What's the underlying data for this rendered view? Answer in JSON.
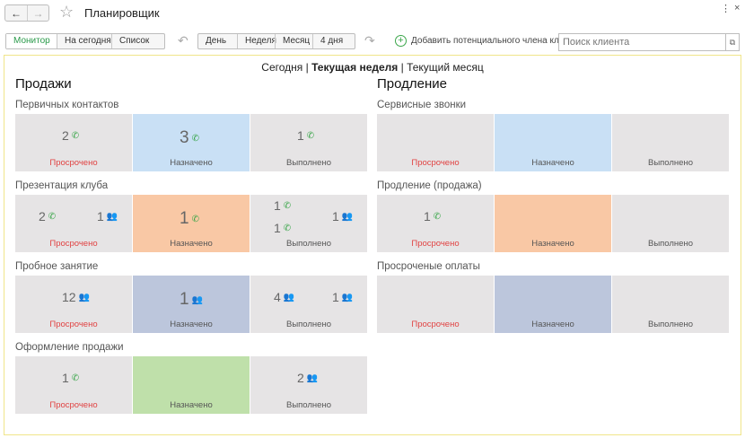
{
  "window": {
    "title": "Планировщик",
    "back": "←",
    "forward": "→",
    "star": "☆",
    "menu": "⋮",
    "close": "×"
  },
  "toolbar": {
    "views": [
      "Монитор",
      "На сегодня",
      "Список"
    ],
    "active_view": "Монитор",
    "undo": "↶",
    "redo": "↷",
    "ranges": [
      "День",
      "Неделя",
      "Месяц",
      "4 дня"
    ],
    "add_label": "Добавить потенциального члена клуба",
    "search_placeholder": "Поиск клиента",
    "search_button": "⧉"
  },
  "periods": {
    "today": "Сегодня",
    "sep1": " | ",
    "week": "Текущая неделя",
    "sep2": " | ",
    "month": "Текущий месяц",
    "selected": "Текущая неделя"
  },
  "sales": {
    "title": "Продажи",
    "groups": [
      {
        "title": "Первичных контактов",
        "tiles": [
          {
            "status": "Просрочено",
            "counts": [
              {
                "value": "2",
                "icon": "phone-icon"
              }
            ]
          },
          {
            "status": "Назначено",
            "counts": [
              {
                "value": "3",
                "icon": "phone-icon"
              }
            ]
          },
          {
            "status": "Выполнено",
            "counts": [
              {
                "value": "1",
                "icon": "phone-icon"
              }
            ]
          }
        ]
      },
      {
        "title": "Презентация клуба",
        "tiles": [
          {
            "status": "Просрочено",
            "counts": [
              {
                "value": "2",
                "icon": "phone-icon"
              },
              {
                "value": "1",
                "icon": "people-icon"
              }
            ]
          },
          {
            "status": "Назначено",
            "counts": [
              {
                "value": "1",
                "icon": "phone-icon"
              }
            ]
          },
          {
            "status": "Выполнено",
            "counts": [
              {
                "value": "1",
                "icon": "phone-outgoing-icon"
              },
              {
                "value": "1",
                "icon": "phone-cancelled-icon"
              },
              {
                "value": "1",
                "icon": "people-icon"
              }
            ]
          }
        ]
      },
      {
        "title": "Пробное занятие",
        "tiles": [
          {
            "status": "Просрочено",
            "counts": [
              {
                "value": "12",
                "icon": "people-icon"
              }
            ]
          },
          {
            "status": "Назначено",
            "counts": [
              {
                "value": "1",
                "icon": "people-icon"
              }
            ]
          },
          {
            "status": "Выполнено",
            "counts": [
              {
                "value": "4",
                "icon": "people-icon"
              },
              {
                "value": "1",
                "icon": "people-cancelled-icon"
              }
            ]
          }
        ]
      },
      {
        "title": "Оформление продажи",
        "tiles": [
          {
            "status": "Просрочено",
            "counts": [
              {
                "value": "1",
                "icon": "phone-icon"
              }
            ]
          },
          {
            "status": "Назначено",
            "counts": []
          },
          {
            "status": "Выполнено",
            "counts": [
              {
                "value": "2",
                "icon": "people-icon"
              }
            ]
          }
        ]
      }
    ]
  },
  "renewal": {
    "title": "Продление",
    "groups": [
      {
        "title": "Сервисные звонки",
        "tiles": [
          {
            "status": "Просрочено",
            "counts": []
          },
          {
            "status": "Назначено",
            "counts": []
          },
          {
            "status": "Выполнено",
            "counts": []
          }
        ]
      },
      {
        "title": "Продление (продажа)",
        "tiles": [
          {
            "status": "Просрочено",
            "counts": [
              {
                "value": "1",
                "icon": "phone-icon"
              }
            ]
          },
          {
            "status": "Назначено",
            "counts": []
          },
          {
            "status": "Выполнено",
            "counts": []
          }
        ]
      },
      {
        "title": "Просроченые оплаты",
        "tiles": [
          {
            "status": "Просрочено",
            "counts": []
          },
          {
            "status": "Назначено",
            "counts": []
          },
          {
            "status": "Выполнено",
            "counts": []
          }
        ]
      }
    ]
  },
  "colors": {
    "overdue_bg": "#e6e4e5",
    "assigned_calls": "#c9e0f5",
    "assigned_presentation": "#f9c8a5",
    "assigned_trial": "#bcc6dc",
    "assigned_sale": "#bfe0aa",
    "overdue_text": "#e14343",
    "accent": "#3aa64a"
  }
}
